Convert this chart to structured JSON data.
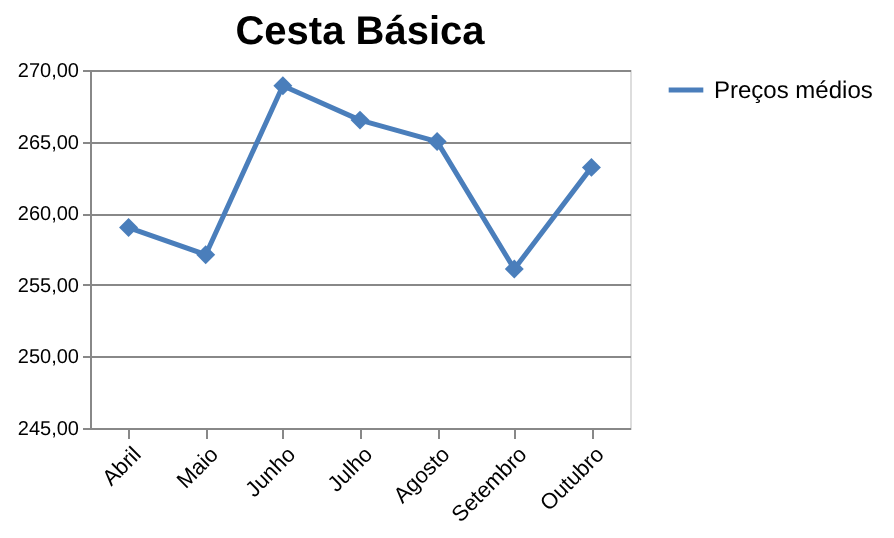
{
  "chart_data": {
    "type": "line",
    "title": "Cesta Básica",
    "categories": [
      "Abril",
      "Maio",
      "Junho",
      "Julho",
      "Agosto",
      "Setembro",
      "Outubro"
    ],
    "series": [
      {
        "name": "Preços médios",
        "color": "#4a7ebb",
        "values": [
          259.0,
          257.1,
          268.9,
          266.5,
          265.0,
          256.1,
          263.2
        ]
      }
    ],
    "ylim": [
      245,
      270
    ],
    "yticks": [
      {
        "value": 245,
        "label": "245,00"
      },
      {
        "value": 250,
        "label": "250,00"
      },
      {
        "value": 255,
        "label": "255,00"
      },
      {
        "value": 260,
        "label": "260,00"
      },
      {
        "value": 265,
        "label": "265,00"
      },
      {
        "value": 270,
        "label": "270,00"
      }
    ],
    "grid": "y",
    "legend": "right",
    "marker": "diamond",
    "line_style": "solid"
  }
}
